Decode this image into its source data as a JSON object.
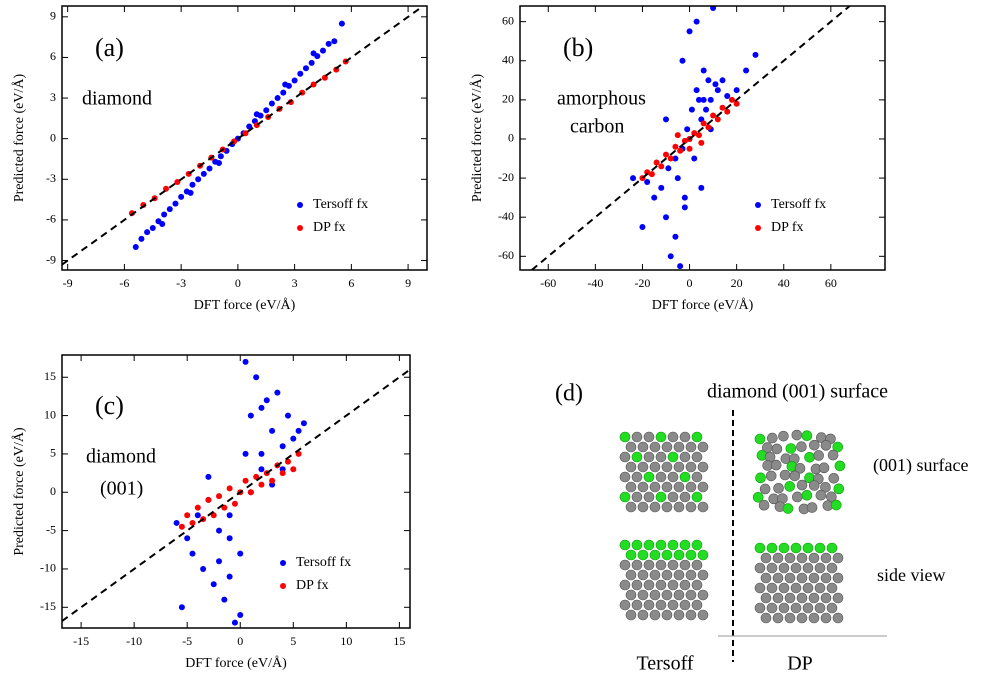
{
  "chart_data": [
    {
      "type": "scatter",
      "annotations": [
        "(a)",
        "diamond"
      ],
      "x_label": "DFT force (eV/Å)",
      "y_label": "Predicted force (eV/Å)",
      "xlim": [
        -9.3,
        10
      ],
      "ylim": [
        -9.7,
        9.8
      ],
      "xticks": [
        -9,
        -6,
        -3,
        0,
        3,
        6,
        9
      ],
      "yticks": [
        -9,
        -6,
        -3,
        0,
        3,
        6,
        9
      ],
      "legend": "lower right",
      "series": [
        {
          "name": "Tersoff fx",
          "color": "#0000ff",
          "x": [
            -5.4,
            -5.1,
            -4.8,
            -4.5,
            -4.2,
            -3.9,
            -3.6,
            -3.3,
            -3.0,
            -2.7,
            -2.4,
            -2.1,
            -1.8,
            -1.5,
            -1.2,
            -0.9,
            -0.6,
            -0.3,
            0.0,
            0.3,
            0.6,
            0.9,
            1.2,
            1.5,
            1.8,
            2.1,
            2.4,
            2.7,
            3.0,
            3.3,
            3.6,
            3.9,
            4.2,
            4.5,
            4.8,
            5.1,
            5.5,
            -4.0,
            -2.5,
            -1.0,
            1.0,
            2.5,
            4.0
          ],
          "values": [
            -8.0,
            -7.4,
            -6.9,
            -6.6,
            -6.1,
            -5.6,
            -5.2,
            -4.8,
            -4.3,
            -3.9,
            -3.4,
            -3.0,
            -2.6,
            -2.2,
            -1.7,
            -1.3,
            -0.9,
            -0.4,
            0.0,
            0.4,
            0.9,
            1.3,
            1.7,
            2.1,
            2.6,
            3.0,
            3.4,
            3.9,
            4.3,
            4.8,
            5.2,
            5.6,
            6.1,
            6.5,
            7.0,
            7.2,
            8.5,
            -6.3,
            -4.0,
            -1.8,
            1.8,
            4.0,
            6.3
          ]
        },
        {
          "name": "DP fx",
          "color": "#ff0000",
          "x": [
            -5.6,
            -5.0,
            -4.4,
            -3.8,
            -3.2,
            -2.6,
            -2.0,
            -1.4,
            -0.8,
            -0.2,
            0.4,
            1.0,
            1.6,
            2.2,
            2.8,
            3.4,
            4.0,
            4.6,
            5.2,
            5.7
          ],
          "values": [
            -5.5,
            -4.9,
            -4.4,
            -3.7,
            -3.2,
            -2.6,
            -2.0,
            -1.4,
            -0.8,
            -0.2,
            0.4,
            1.0,
            1.6,
            2.2,
            2.7,
            3.4,
            4.0,
            4.5,
            5.1,
            5.7
          ]
        }
      ]
    },
    {
      "type": "scatter",
      "annotations": [
        "(b)",
        "amorphous",
        "carbon"
      ],
      "x_label": "DFT force (eV/Å)",
      "y_label": "Predicted force (eV/Å)",
      "xlim": [
        -72,
        83
      ],
      "ylim": [
        -67,
        68
      ],
      "xticks": [
        -60,
        -40,
        -20,
        0,
        20,
        40,
        60
      ],
      "yticks": [
        -60,
        -40,
        -20,
        0,
        20,
        40,
        60
      ],
      "legend": "lower right",
      "series": [
        {
          "name": "Tersoff fx",
          "color": "#0000ff",
          "x": [
            -24,
            -20,
            -18,
            -15,
            -12,
            -10,
            -9,
            -8,
            -6,
            -5,
            -4,
            -3,
            -2,
            -1,
            0,
            1,
            2,
            3,
            4,
            5,
            6,
            7,
            8,
            9,
            10,
            12,
            14,
            16,
            20,
            24,
            28,
            -6,
            -3,
            0,
            3,
            6,
            9,
            11,
            -10,
            -2,
            5
          ],
          "values": [
            -20,
            -45,
            -22,
            -30,
            -25,
            -40,
            -15,
            -60,
            -10,
            -20,
            -65,
            -5,
            -30,
            5,
            0,
            15,
            -10,
            25,
            20,
            10,
            35,
            15,
            30,
            20,
            67,
            25,
            30,
            22,
            25,
            35,
            43,
            -50,
            40,
            55,
            60,
            20,
            5,
            28,
            10,
            -35,
            -25
          ]
        },
        {
          "name": "DP fx",
          "color": "#ff0000",
          "x": [
            -20,
            -18,
            -16,
            -14,
            -12,
            -10,
            -8,
            -6,
            -4,
            -2,
            0,
            2,
            4,
            6,
            8,
            10,
            12,
            14,
            16,
            18,
            20,
            -5,
            5,
            0
          ],
          "values": [
            -20,
            -17,
            -18,
            -12,
            -14,
            -8,
            -10,
            -4,
            -6,
            -1,
            0,
            3,
            2,
            8,
            6,
            12,
            10,
            16,
            14,
            20,
            18,
            2,
            -2,
            -5
          ]
        }
      ]
    },
    {
      "type": "scatter",
      "annotations": [
        "(c)",
        "diamond",
        "(001)"
      ],
      "x_label": "DFT force (eV/Å)",
      "y_label": "Predicted force (eV/Å)",
      "xlim": [
        -16.8,
        16
      ],
      "ylim": [
        -17.7,
        17.9
      ],
      "xticks": [
        -15,
        -10,
        -5,
        0,
        5,
        10,
        15
      ],
      "yticks": [
        -15,
        -10,
        -5,
        0,
        5,
        10,
        15
      ],
      "legend": "lower right",
      "series": [
        {
          "name": "Tersoff fx",
          "color": "#0000ff",
          "x": [
            -6,
            -5.5,
            -5,
            -4.5,
            -4,
            -3.5,
            -3,
            -2.5,
            -2,
            -1.5,
            -1,
            -0.5,
            0,
            0.5,
            1,
            1.5,
            2,
            2.5,
            3,
            3.5,
            4,
            4.5,
            5,
            5.5,
            6,
            -2,
            -1,
            0,
            1,
            2,
            3,
            -3,
            -1,
            0.5,
            2,
            4
          ],
          "values": [
            -4,
            -15,
            -6,
            -8,
            -3,
            -10,
            -1,
            -12,
            -5,
            -14,
            -6,
            -17,
            -8,
            17,
            0,
            15,
            5,
            12,
            8,
            13,
            6,
            10,
            7,
            8,
            9,
            -9,
            -11,
            -16,
            10,
            3,
            1,
            2,
            -3,
            5,
            11,
            3
          ]
        },
        {
          "name": "DP fx",
          "color": "#ff0000",
          "x": [
            -5.5,
            -5,
            -4.5,
            -4,
            -3.5,
            -3,
            -2.5,
            -2,
            -1.5,
            -1,
            -0.5,
            0,
            0.5,
            1,
            1.5,
            2,
            2.5,
            3,
            3.5,
            4,
            4.5,
            5,
            5.5
          ],
          "values": [
            -4.5,
            -3,
            -4,
            -2,
            -3.5,
            -1,
            -3,
            -0.5,
            -2,
            0.5,
            -1.5,
            0,
            1.5,
            0,
            2,
            1,
            2.5,
            1.5,
            3.5,
            2.5,
            4,
            3,
            5
          ]
        }
      ]
    }
  ],
  "diagram": {
    "label": "(d)",
    "title": "diamond (001) surface",
    "row_labels": [
      "(001) surface",
      "side view"
    ],
    "column_labels": [
      "Tersoff",
      "DP"
    ]
  }
}
